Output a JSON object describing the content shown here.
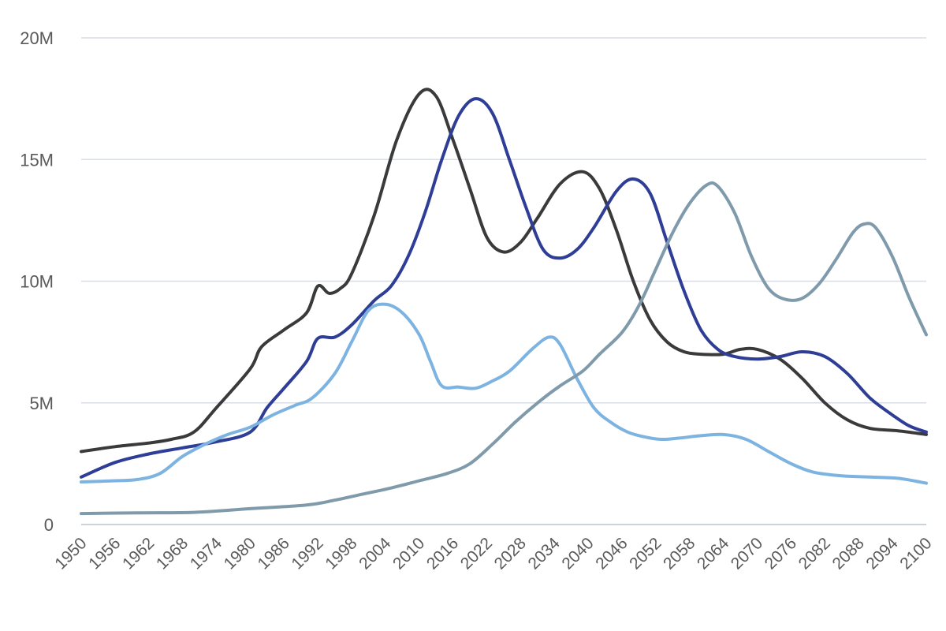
{
  "chart_data": {
    "type": "line",
    "title": "",
    "xlabel": "",
    "ylabel": "",
    "xlim": [
      1950,
      2100
    ],
    "ylim": [
      0,
      20000000
    ],
    "y_ticks": [
      {
        "value": 0,
        "label": "0"
      },
      {
        "value": 5000000,
        "label": "5M"
      },
      {
        "value": 10000000,
        "label": "10M"
      },
      {
        "value": 15000000,
        "label": "15M"
      },
      {
        "value": 20000000,
        "label": "20M"
      }
    ],
    "x_ticks": [
      1950,
      1956,
      1962,
      1968,
      1974,
      1980,
      1986,
      1992,
      1998,
      2004,
      2010,
      2016,
      2022,
      2028,
      2034,
      2040,
      2046,
      2052,
      2058,
      2064,
      2070,
      2076,
      2082,
      2088,
      2094,
      2100
    ],
    "x_tick_labels": [
      "1950",
      "1956",
      "1962",
      "1968",
      "1974",
      "1980",
      "1986",
      "1992",
      "1998",
      "2004",
      "2010",
      "2016",
      "2022",
      "2028",
      "2034",
      "2040",
      "2046",
      "2052",
      "2058",
      "2064",
      "2070",
      "2076",
      "2082",
      "2088",
      "2094",
      "2100"
    ],
    "grid": true,
    "legend": "none",
    "series": [
      {
        "color": "#3a3a3a",
        "points": [
          [
            1950,
            3000000
          ],
          [
            1956,
            3200000
          ],
          [
            1962,
            3350000
          ],
          [
            1966,
            3500000
          ],
          [
            1970,
            3800000
          ],
          [
            1974,
            4800000
          ],
          [
            1980,
            6400000
          ],
          [
            1982,
            7300000
          ],
          [
            1986,
            8000000
          ],
          [
            1990,
            8700000
          ],
          [
            1992,
            9800000
          ],
          [
            1994,
            9500000
          ],
          [
            1996,
            9700000
          ],
          [
            1998,
            10300000
          ],
          [
            2002,
            12700000
          ],
          [
            2006,
            15800000
          ],
          [
            2010,
            17700000
          ],
          [
            2013,
            17600000
          ],
          [
            2016,
            15800000
          ],
          [
            2019,
            13800000
          ],
          [
            2022,
            11800000
          ],
          [
            2025,
            11200000
          ],
          [
            2028,
            11600000
          ],
          [
            2031,
            12600000
          ],
          [
            2035,
            14000000
          ],
          [
            2039,
            14500000
          ],
          [
            2042,
            13800000
          ],
          [
            2045,
            12100000
          ],
          [
            2048,
            10000000
          ],
          [
            2051,
            8400000
          ],
          [
            2054,
            7500000
          ],
          [
            2057,
            7100000
          ],
          [
            2060,
            7000000
          ],
          [
            2064,
            7000000
          ],
          [
            2067,
            7200000
          ],
          [
            2070,
            7200000
          ],
          [
            2074,
            6800000
          ],
          [
            2078,
            6000000
          ],
          [
            2082,
            5000000
          ],
          [
            2086,
            4300000
          ],
          [
            2090,
            3950000
          ],
          [
            2095,
            3850000
          ],
          [
            2100,
            3700000
          ]
        ]
      },
      {
        "color": "#2e3d96",
        "points": [
          [
            1950,
            1950000
          ],
          [
            1956,
            2550000
          ],
          [
            1962,
            2900000
          ],
          [
            1968,
            3150000
          ],
          [
            1974,
            3400000
          ],
          [
            1980,
            3800000
          ],
          [
            1983,
            4800000
          ],
          [
            1986,
            5600000
          ],
          [
            1990,
            6700000
          ],
          [
            1992,
            7650000
          ],
          [
            1995,
            7700000
          ],
          [
            1998,
            8200000
          ],
          [
            2002,
            9200000
          ],
          [
            2005,
            9800000
          ],
          [
            2008,
            11000000
          ],
          [
            2011,
            12800000
          ],
          [
            2014,
            15000000
          ],
          [
            2017,
            16800000
          ],
          [
            2020,
            17500000
          ],
          [
            2023,
            16900000
          ],
          [
            2026,
            15000000
          ],
          [
            2029,
            13000000
          ],
          [
            2032,
            11300000
          ],
          [
            2035,
            10950000
          ],
          [
            2038,
            11300000
          ],
          [
            2041,
            12200000
          ],
          [
            2045,
            13700000
          ],
          [
            2048,
            14200000
          ],
          [
            2051,
            13600000
          ],
          [
            2054,
            11600000
          ],
          [
            2057,
            9600000
          ],
          [
            2060,
            8000000
          ],
          [
            2063,
            7200000
          ],
          [
            2066,
            6900000
          ],
          [
            2070,
            6800000
          ],
          [
            2074,
            6900000
          ],
          [
            2078,
            7100000
          ],
          [
            2082,
            6900000
          ],
          [
            2086,
            6200000
          ],
          [
            2090,
            5200000
          ],
          [
            2094,
            4500000
          ],
          [
            2097,
            4050000
          ],
          [
            2100,
            3800000
          ]
        ]
      },
      {
        "color": "#7db3e0",
        "points": [
          [
            1950,
            1750000
          ],
          [
            1956,
            1800000
          ],
          [
            1960,
            1850000
          ],
          [
            1964,
            2100000
          ],
          [
            1968,
            2800000
          ],
          [
            1972,
            3300000
          ],
          [
            1976,
            3700000
          ],
          [
            1980,
            4000000
          ],
          [
            1984,
            4500000
          ],
          [
            1988,
            4900000
          ],
          [
            1991,
            5200000
          ],
          [
            1995,
            6200000
          ],
          [
            1998,
            7500000
          ],
          [
            2001,
            8800000
          ],
          [
            2004,
            9050000
          ],
          [
            2007,
            8700000
          ],
          [
            2010,
            7800000
          ],
          [
            2012,
            6700000
          ],
          [
            2014,
            5700000
          ],
          [
            2017,
            5650000
          ],
          [
            2020,
            5600000
          ],
          [
            2023,
            5900000
          ],
          [
            2026,
            6300000
          ],
          [
            2030,
            7200000
          ],
          [
            2033,
            7700000
          ],
          [
            2035,
            7400000
          ],
          [
            2038,
            6000000
          ],
          [
            2041,
            4800000
          ],
          [
            2044,
            4200000
          ],
          [
            2047,
            3800000
          ],
          [
            2050,
            3600000
          ],
          [
            2053,
            3500000
          ],
          [
            2056,
            3550000
          ],
          [
            2060,
            3650000
          ],
          [
            2064,
            3700000
          ],
          [
            2068,
            3500000
          ],
          [
            2072,
            3000000
          ],
          [
            2076,
            2500000
          ],
          [
            2080,
            2150000
          ],
          [
            2085,
            2000000
          ],
          [
            2090,
            1950000
          ],
          [
            2095,
            1900000
          ],
          [
            2100,
            1700000
          ]
        ]
      },
      {
        "color": "#7f9bab",
        "points": [
          [
            1950,
            450000
          ],
          [
            1960,
            480000
          ],
          [
            1970,
            500000
          ],
          [
            1980,
            650000
          ],
          [
            1990,
            800000
          ],
          [
            1995,
            1000000
          ],
          [
            2000,
            1250000
          ],
          [
            2005,
            1500000
          ],
          [
            2010,
            1800000
          ],
          [
            2015,
            2100000
          ],
          [
            2019,
            2500000
          ],
          [
            2023,
            3300000
          ],
          [
            2027,
            4200000
          ],
          [
            2031,
            5000000
          ],
          [
            2035,
            5700000
          ],
          [
            2039,
            6300000
          ],
          [
            2042,
            7000000
          ],
          [
            2046,
            7900000
          ],
          [
            2049,
            9000000
          ],
          [
            2052,
            10500000
          ],
          [
            2055,
            12000000
          ],
          [
            2058,
            13200000
          ],
          [
            2061,
            13950000
          ],
          [
            2063,
            13900000
          ],
          [
            2066,
            12800000
          ],
          [
            2069,
            11000000
          ],
          [
            2072,
            9700000
          ],
          [
            2075,
            9250000
          ],
          [
            2078,
            9300000
          ],
          [
            2081,
            9900000
          ],
          [
            2084,
            10900000
          ],
          [
            2087,
            12000000
          ],
          [
            2089,
            12350000
          ],
          [
            2091,
            12200000
          ],
          [
            2094,
            11000000
          ],
          [
            2097,
            9300000
          ],
          [
            2100,
            7800000
          ]
        ]
      }
    ]
  }
}
